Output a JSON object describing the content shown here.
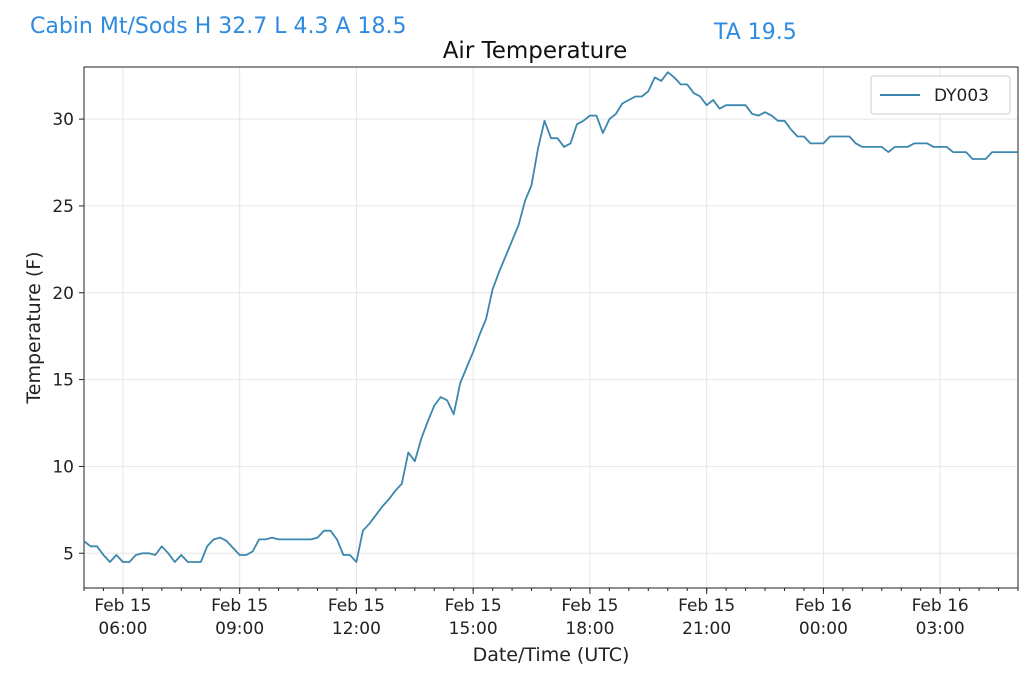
{
  "header": {
    "station_summary": "Cabin Mt/Sods H 32.7 L 4.3 A 18.5",
    "ta": "TA 19.5"
  },
  "colors": {
    "header_text": "#2f8be0",
    "series_line": "#3b87ad",
    "grid": "#e6e6e6"
  },
  "chart_data": {
    "type": "line",
    "title": "Air Temperature",
    "xlabel": "Date/Time (UTC)",
    "ylabel": "Temperature (F)",
    "xlim": [
      "2025-02-15T05:00",
      "2025-02-16T05:00"
    ],
    "ylim": [
      3,
      33
    ],
    "grid": true,
    "legend_position": "top-right",
    "x_ticks": [
      {
        "x": "2025-02-15T06:00",
        "line1": "Feb 15",
        "line2": "06:00"
      },
      {
        "x": "2025-02-15T09:00",
        "line1": "Feb 15",
        "line2": "09:00"
      },
      {
        "x": "2025-02-15T12:00",
        "line1": "Feb 15",
        "line2": "12:00"
      },
      {
        "x": "2025-02-15T15:00",
        "line1": "Feb 15",
        "line2": "15:00"
      },
      {
        "x": "2025-02-15T18:00",
        "line1": "Feb 15",
        "line2": "18:00"
      },
      {
        "x": "2025-02-15T21:00",
        "line1": "Feb 15",
        "line2": "21:00"
      },
      {
        "x": "2025-02-16T00:00",
        "line1": "Feb 16",
        "line2": "00:00"
      },
      {
        "x": "2025-02-16T03:00",
        "line1": "Feb 16",
        "line2": "03:00"
      }
    ],
    "y_ticks": [
      5,
      10,
      15,
      20,
      25,
      30
    ],
    "series": [
      {
        "name": "DY003",
        "color": "#3b87ad",
        "points": [
          [
            "2025-02-15T05:00",
            5.7
          ],
          [
            "2025-02-15T05:10",
            5.4
          ],
          [
            "2025-02-15T05:20",
            5.4
          ],
          [
            "2025-02-15T05:30",
            4.9
          ],
          [
            "2025-02-15T05:40",
            4.5
          ],
          [
            "2025-02-15T05:50",
            4.9
          ],
          [
            "2025-02-15T06:00",
            4.5
          ],
          [
            "2025-02-15T06:10",
            4.5
          ],
          [
            "2025-02-15T06:20",
            4.9
          ],
          [
            "2025-02-15T06:30",
            5.0
          ],
          [
            "2025-02-15T06:40",
            5.0
          ],
          [
            "2025-02-15T06:50",
            4.9
          ],
          [
            "2025-02-15T07:00",
            5.4
          ],
          [
            "2025-02-15T07:10",
            5.0
          ],
          [
            "2025-02-15T07:20",
            4.5
          ],
          [
            "2025-02-15T07:30",
            4.9
          ],
          [
            "2025-02-15T07:40",
            4.5
          ],
          [
            "2025-02-15T07:50",
            4.5
          ],
          [
            "2025-02-15T08:00",
            4.5
          ],
          [
            "2025-02-15T08:10",
            5.4
          ],
          [
            "2025-02-15T08:20",
            5.8
          ],
          [
            "2025-02-15T08:30",
            5.9
          ],
          [
            "2025-02-15T08:40",
            5.7
          ],
          [
            "2025-02-15T08:50",
            5.3
          ],
          [
            "2025-02-15T09:00",
            4.9
          ],
          [
            "2025-02-15T09:10",
            4.9
          ],
          [
            "2025-02-15T09:20",
            5.1
          ],
          [
            "2025-02-15T09:30",
            5.8
          ],
          [
            "2025-02-15T09:40",
            5.8
          ],
          [
            "2025-02-15T09:50",
            5.9
          ],
          [
            "2025-02-15T10:00",
            5.8
          ],
          [
            "2025-02-15T10:10",
            5.8
          ],
          [
            "2025-02-15T10:20",
            5.8
          ],
          [
            "2025-02-15T10:30",
            5.8
          ],
          [
            "2025-02-15T10:40",
            5.8
          ],
          [
            "2025-02-15T10:50",
            5.8
          ],
          [
            "2025-02-15T11:00",
            5.9
          ],
          [
            "2025-02-15T11:10",
            6.3
          ],
          [
            "2025-02-15T11:20",
            6.3
          ],
          [
            "2025-02-15T11:30",
            5.8
          ],
          [
            "2025-02-15T11:40",
            4.9
          ],
          [
            "2025-02-15T11:50",
            4.9
          ],
          [
            "2025-02-15T12:00",
            4.5
          ],
          [
            "2025-02-15T12:10",
            6.3
          ],
          [
            "2025-02-15T12:20",
            6.7
          ],
          [
            "2025-02-15T12:30",
            7.2
          ],
          [
            "2025-02-15T12:40",
            7.7
          ],
          [
            "2025-02-15T12:50",
            8.1
          ],
          [
            "2025-02-15T13:00",
            8.6
          ],
          [
            "2025-02-15T13:10",
            9.0
          ],
          [
            "2025-02-15T13:20",
            10.8
          ],
          [
            "2025-02-15T13:30",
            10.3
          ],
          [
            "2025-02-15T13:40",
            11.6
          ],
          [
            "2025-02-15T13:50",
            12.6
          ],
          [
            "2025-02-15T14:00",
            13.5
          ],
          [
            "2025-02-15T14:10",
            14.0
          ],
          [
            "2025-02-15T14:20",
            13.8
          ],
          [
            "2025-02-15T14:30",
            13.0
          ],
          [
            "2025-02-15T14:40",
            14.8
          ],
          [
            "2025-02-15T14:50",
            15.7
          ],
          [
            "2025-02-15T15:00",
            16.6
          ],
          [
            "2025-02-15T15:10",
            17.6
          ],
          [
            "2025-02-15T15:20",
            18.5
          ],
          [
            "2025-02-15T15:30",
            20.2
          ],
          [
            "2025-02-15T15:40",
            21.2
          ],
          [
            "2025-02-15T15:50",
            22.1
          ],
          [
            "2025-02-15T16:00",
            23.0
          ],
          [
            "2025-02-15T16:10",
            23.9
          ],
          [
            "2025-02-15T16:20",
            25.3
          ],
          [
            "2025-02-15T16:30",
            26.2
          ],
          [
            "2025-02-15T16:40",
            28.3
          ],
          [
            "2025-02-15T16:50",
            29.9
          ],
          [
            "2025-02-15T17:00",
            28.9
          ],
          [
            "2025-02-15T17:10",
            28.9
          ],
          [
            "2025-02-15T17:20",
            28.4
          ],
          [
            "2025-02-15T17:30",
            28.6
          ],
          [
            "2025-02-15T17:40",
            29.7
          ],
          [
            "2025-02-15T17:50",
            29.9
          ],
          [
            "2025-02-15T18:00",
            30.2
          ],
          [
            "2025-02-15T18:10",
            30.2
          ],
          [
            "2025-02-15T18:20",
            29.2
          ],
          [
            "2025-02-15T18:30",
            30.0
          ],
          [
            "2025-02-15T18:40",
            30.3
          ],
          [
            "2025-02-15T18:50",
            30.9
          ],
          [
            "2025-02-15T19:00",
            31.1
          ],
          [
            "2025-02-15T19:10",
            31.3
          ],
          [
            "2025-02-15T19:20",
            31.3
          ],
          [
            "2025-02-15T19:30",
            31.6
          ],
          [
            "2025-02-15T19:40",
            32.4
          ],
          [
            "2025-02-15T19:50",
            32.2
          ],
          [
            "2025-02-15T20:00",
            32.7
          ],
          [
            "2025-02-15T20:10",
            32.4
          ],
          [
            "2025-02-15T20:20",
            32.0
          ],
          [
            "2025-02-15T20:30",
            32.0
          ],
          [
            "2025-02-15T20:40",
            31.5
          ],
          [
            "2025-02-15T20:50",
            31.3
          ],
          [
            "2025-02-15T21:00",
            30.8
          ],
          [
            "2025-02-15T21:10",
            31.1
          ],
          [
            "2025-02-15T21:20",
            30.6
          ],
          [
            "2025-02-15T21:30",
            30.8
          ],
          [
            "2025-02-15T21:40",
            30.8
          ],
          [
            "2025-02-15T21:50",
            30.8
          ],
          [
            "2025-02-15T22:00",
            30.8
          ],
          [
            "2025-02-15T22:10",
            30.3
          ],
          [
            "2025-02-15T22:20",
            30.2
          ],
          [
            "2025-02-15T22:30",
            30.4
          ],
          [
            "2025-02-15T22:40",
            30.2
          ],
          [
            "2025-02-15T22:50",
            29.9
          ],
          [
            "2025-02-15T23:00",
            29.9
          ],
          [
            "2025-02-15T23:10",
            29.4
          ],
          [
            "2025-02-15T23:20",
            29.0
          ],
          [
            "2025-02-15T23:30",
            29.0
          ],
          [
            "2025-02-15T23:40",
            28.6
          ],
          [
            "2025-02-15T23:50",
            28.6
          ],
          [
            "2025-02-16T00:00",
            28.6
          ],
          [
            "2025-02-16T00:10",
            29.0
          ],
          [
            "2025-02-16T00:20",
            29.0
          ],
          [
            "2025-02-16T00:30",
            29.0
          ],
          [
            "2025-02-16T00:40",
            29.0
          ],
          [
            "2025-02-16T00:50",
            28.6
          ],
          [
            "2025-02-16T01:00",
            28.4
          ],
          [
            "2025-02-16T01:10",
            28.4
          ],
          [
            "2025-02-16T01:20",
            28.4
          ],
          [
            "2025-02-16T01:30",
            28.4
          ],
          [
            "2025-02-16T01:40",
            28.1
          ],
          [
            "2025-02-16T01:50",
            28.4
          ],
          [
            "2025-02-16T02:00",
            28.4
          ],
          [
            "2025-02-16T02:10",
            28.4
          ],
          [
            "2025-02-16T02:20",
            28.6
          ],
          [
            "2025-02-16T02:30",
            28.6
          ],
          [
            "2025-02-16T02:40",
            28.6
          ],
          [
            "2025-02-16T02:50",
            28.4
          ],
          [
            "2025-02-16T03:00",
            28.4
          ],
          [
            "2025-02-16T03:10",
            28.4
          ],
          [
            "2025-02-16T03:20",
            28.1
          ],
          [
            "2025-02-16T03:30",
            28.1
          ],
          [
            "2025-02-16T03:40",
            28.1
          ],
          [
            "2025-02-16T03:50",
            27.7
          ],
          [
            "2025-02-16T04:00",
            27.7
          ],
          [
            "2025-02-16T04:10",
            27.7
          ],
          [
            "2025-02-16T04:20",
            28.1
          ],
          [
            "2025-02-16T04:30",
            28.1
          ],
          [
            "2025-02-16T04:40",
            28.1
          ],
          [
            "2025-02-16T04:50",
            28.1
          ],
          [
            "2025-02-16T05:00",
            28.1
          ]
        ]
      }
    ]
  }
}
